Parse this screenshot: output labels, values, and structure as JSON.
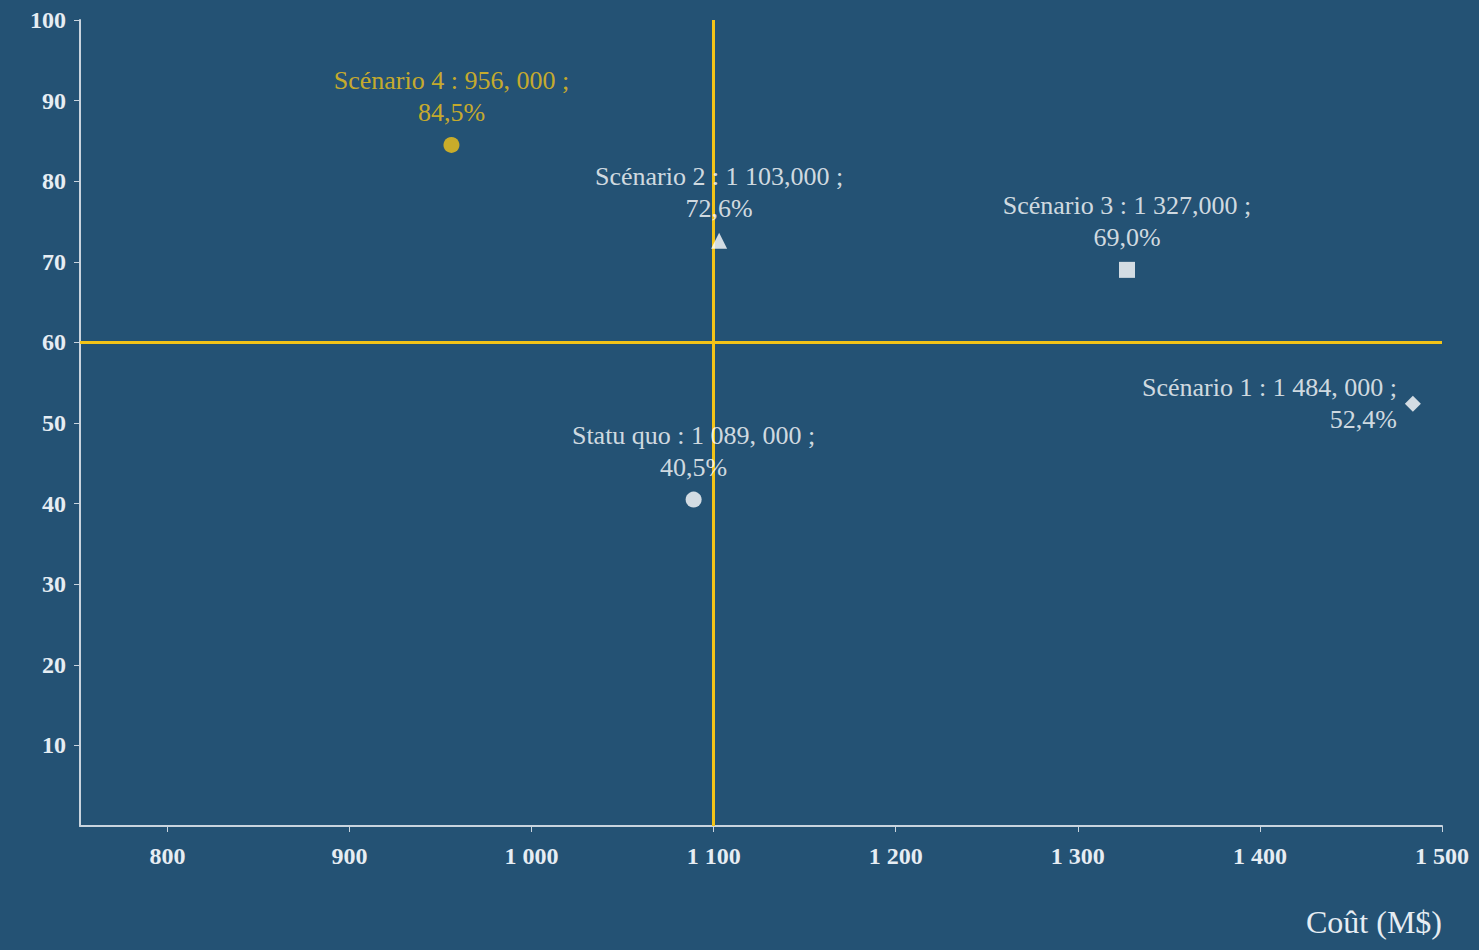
{
  "chart_data": {
    "type": "scatter",
    "x_label": "Coût (M$)",
    "xlim": [
      752,
      1500
    ],
    "xticks": [
      800,
      900,
      {
        "value": 1000,
        "label": "1 000"
      },
      {
        "value": 1100,
        "label": "1 100"
      },
      {
        "value": 1200,
        "label": "1 200"
      },
      {
        "value": 1300,
        "label": "1 300"
      },
      {
        "value": 1400,
        "label": "1 400"
      },
      {
        "value": 1500,
        "label": "1 500"
      }
    ],
    "ylim": [
      0,
      100
    ],
    "yticks": [
      10,
      20,
      30,
      40,
      50,
      60,
      70,
      80,
      90,
      100
    ],
    "grid": false,
    "data_labels": true,
    "vlines": [
      1100
    ],
    "hlines": [
      60
    ],
    "line_color": "#f2c318",
    "series": [
      {
        "color": "#f2c318",
        "marker": "circle",
        "x": [
          956
        ],
        "values": [
          84.5
        ],
        "value_labels": [
          "Scénario 4 : 956, 000 ;\n84,5%"
        ]
      },
      {
        "color": "#ffffff",
        "marker": "triangle",
        "x": [
          1103
        ],
        "values": [
          72.6
        ],
        "value_labels": [
          "Scénario 2 : 1 103,000 ;\n72,6%"
        ]
      },
      {
        "color": "#ffffff",
        "marker": "square",
        "x": [
          1327
        ],
        "values": [
          69.0
        ],
        "value_labels": [
          "Scénario 3 : 1 327,000 ;\n69,0%"
        ]
      },
      {
        "color": "#ffffff",
        "marker": "diamond",
        "x": [
          1484
        ],
        "values": [
          52.4
        ],
        "value_labels": [
          "Scénario 1 : 1 484, 000 ;\n52,4%"
        ]
      },
      {
        "color": "#ffffff",
        "marker": "circle",
        "x": [
          1089
        ],
        "values": [
          40.5
        ],
        "value_labels": [
          "Statu quo : 1 089, 000 ;\n40,5%"
        ]
      }
    ]
  }
}
